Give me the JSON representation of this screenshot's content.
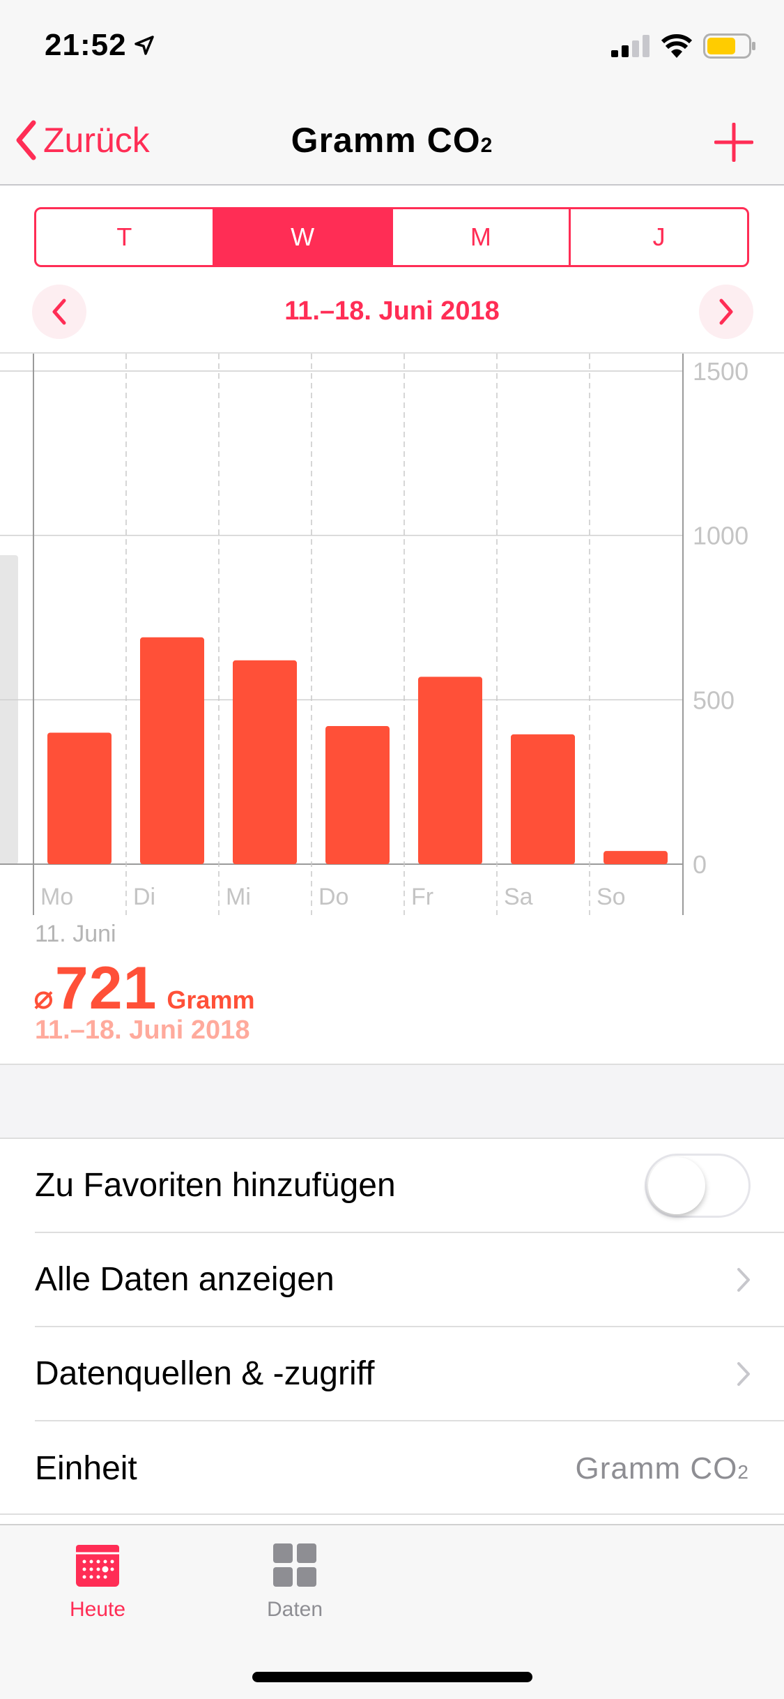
{
  "status": {
    "time": "21:52"
  },
  "nav": {
    "back_label": "Zurück",
    "title_main": "Gramm CO",
    "title_sub": "2"
  },
  "segments": {
    "day": "T",
    "week": "W",
    "month": "M",
    "year": "J",
    "active": "W"
  },
  "date_range": "11.–18. Juni 2018",
  "chart_data": {
    "type": "bar",
    "categories": [
      "Mo",
      "Di",
      "Mi",
      "Do",
      "Fr",
      "Sa",
      "So"
    ],
    "values": [
      400,
      690,
      620,
      420,
      570,
      395,
      40
    ],
    "title": "",
    "xlabel": "",
    "ylabel": "",
    "ylim": [
      0,
      1500
    ],
    "yticks": [
      "0",
      "500",
      "1000",
      "1500"
    ],
    "grid": true,
    "bar_color": "#ff5038",
    "prev_period_partial_bar": 940
  },
  "summary": {
    "date": "11. Juni",
    "avg_symbol": "⌀",
    "avg_value": "721",
    "avg_unit": "Gramm",
    "range": "11.–18. Juni 2018"
  },
  "list": {
    "favorites_label": "Zu Favoriten hinzufügen",
    "favorites_on": false,
    "all_data_label": "Alle Daten anzeigen",
    "sources_label": "Datenquellen & -zugriff",
    "unit_label": "Einheit",
    "unit_value_main": "Gramm CO",
    "unit_value_sub": "2"
  },
  "tabs": {
    "today_label": "Heute",
    "data_label": "Daten"
  },
  "colors": {
    "accent": "#ff2d55",
    "bar": "#ff5038",
    "inactive_tab": "#8e8e93"
  }
}
